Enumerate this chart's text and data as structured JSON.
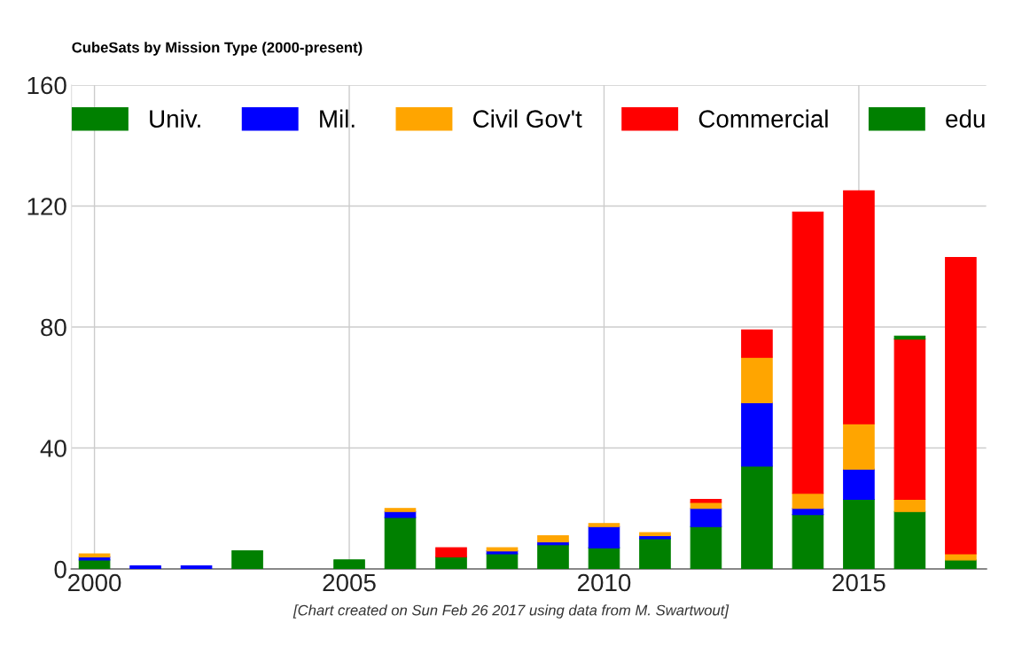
{
  "chart_data": {
    "type": "bar",
    "stacked": true,
    "title": "CubeSats by Mission Type (2000-present)",
    "x": [
      2000,
      2001,
      2002,
      2003,
      2004,
      2005,
      2006,
      2007,
      2008,
      2009,
      2010,
      2011,
      2012,
      2013,
      2014,
      2015,
      2016,
      2017
    ],
    "series": [
      {
        "name": "Univ.",
        "color": "#008000",
        "values": [
          3,
          0,
          0,
          6,
          0,
          3,
          17,
          4,
          5,
          8,
          7,
          10,
          14,
          34,
          18,
          23,
          19,
          3
        ]
      },
      {
        "name": "Mil.",
        "color": "#0000ff",
        "values": [
          1,
          1,
          1,
          0,
          0,
          0,
          2,
          0,
          1,
          1,
          7,
          1,
          6,
          21,
          2,
          10,
          0,
          0
        ]
      },
      {
        "name": "Civil Gov't",
        "color": "#ffa500",
        "values": [
          1,
          0,
          0,
          0,
          0,
          0,
          1,
          0,
          1,
          2,
          1,
          1,
          2,
          15,
          5,
          15,
          4,
          2
        ]
      },
      {
        "name": "Commercial",
        "color": "#ff0000",
        "values": [
          0,
          0,
          0,
          0,
          0,
          0,
          0,
          3,
          0,
          0,
          0,
          0,
          1,
          9,
          93,
          77,
          53,
          98
        ]
      },
      {
        "name": "edu",
        "color": "#008000",
        "values": [
          0,
          0,
          0,
          0,
          0,
          0,
          0,
          0,
          0,
          0,
          0,
          0,
          0,
          0,
          0,
          0,
          1,
          0
        ]
      }
    ],
    "xlim": [
      1999.55,
      2017.5
    ],
    "xticks": [
      2000,
      2005,
      2010,
      2015
    ],
    "ylim": [
      0,
      160
    ],
    "yticks": [
      0,
      40,
      80,
      120,
      160
    ],
    "grid": true,
    "legend": "top",
    "annotations": [
      "[Chart created on Sun Feb 26 2017 using data from M. Swartwout]"
    ]
  }
}
